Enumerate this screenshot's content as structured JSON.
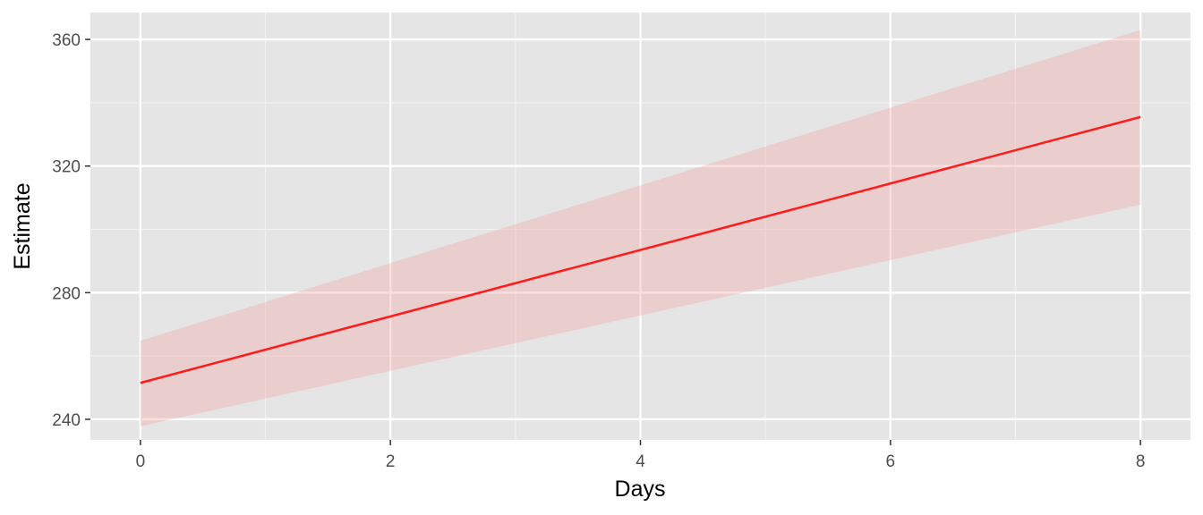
{
  "chart_data": {
    "type": "line",
    "title": "",
    "xlabel": "Days",
    "ylabel": "Estimate",
    "xlim": [
      -0.4,
      8.4
    ],
    "ylim": [
      233.5,
      368.5
    ],
    "x_ticks": [
      0,
      2,
      4,
      6,
      8
    ],
    "y_ticks": [
      240,
      280,
      320,
      360
    ],
    "x_minor_ticks": [
      1,
      3,
      5,
      7
    ],
    "y_minor_ticks": [
      260,
      300,
      340
    ],
    "grid": true,
    "series": [
      {
        "name": "Estimate",
        "color": "#ff1a1a",
        "x": [
          0,
          8
        ],
        "y": [
          251.5,
          335.5
        ],
        "ribbon_lower": [
          237.8,
          307.8
        ],
        "ribbon_upper": [
          264.8,
          363.0
        ],
        "ribbon_color": "#f4a3a3",
        "ribbon_opacity": 0.35
      }
    ]
  },
  "colors": {
    "panel_background": "#e5e5e5",
    "grid_major": "#ffffff",
    "grid_minor": "#f2f2f2"
  }
}
